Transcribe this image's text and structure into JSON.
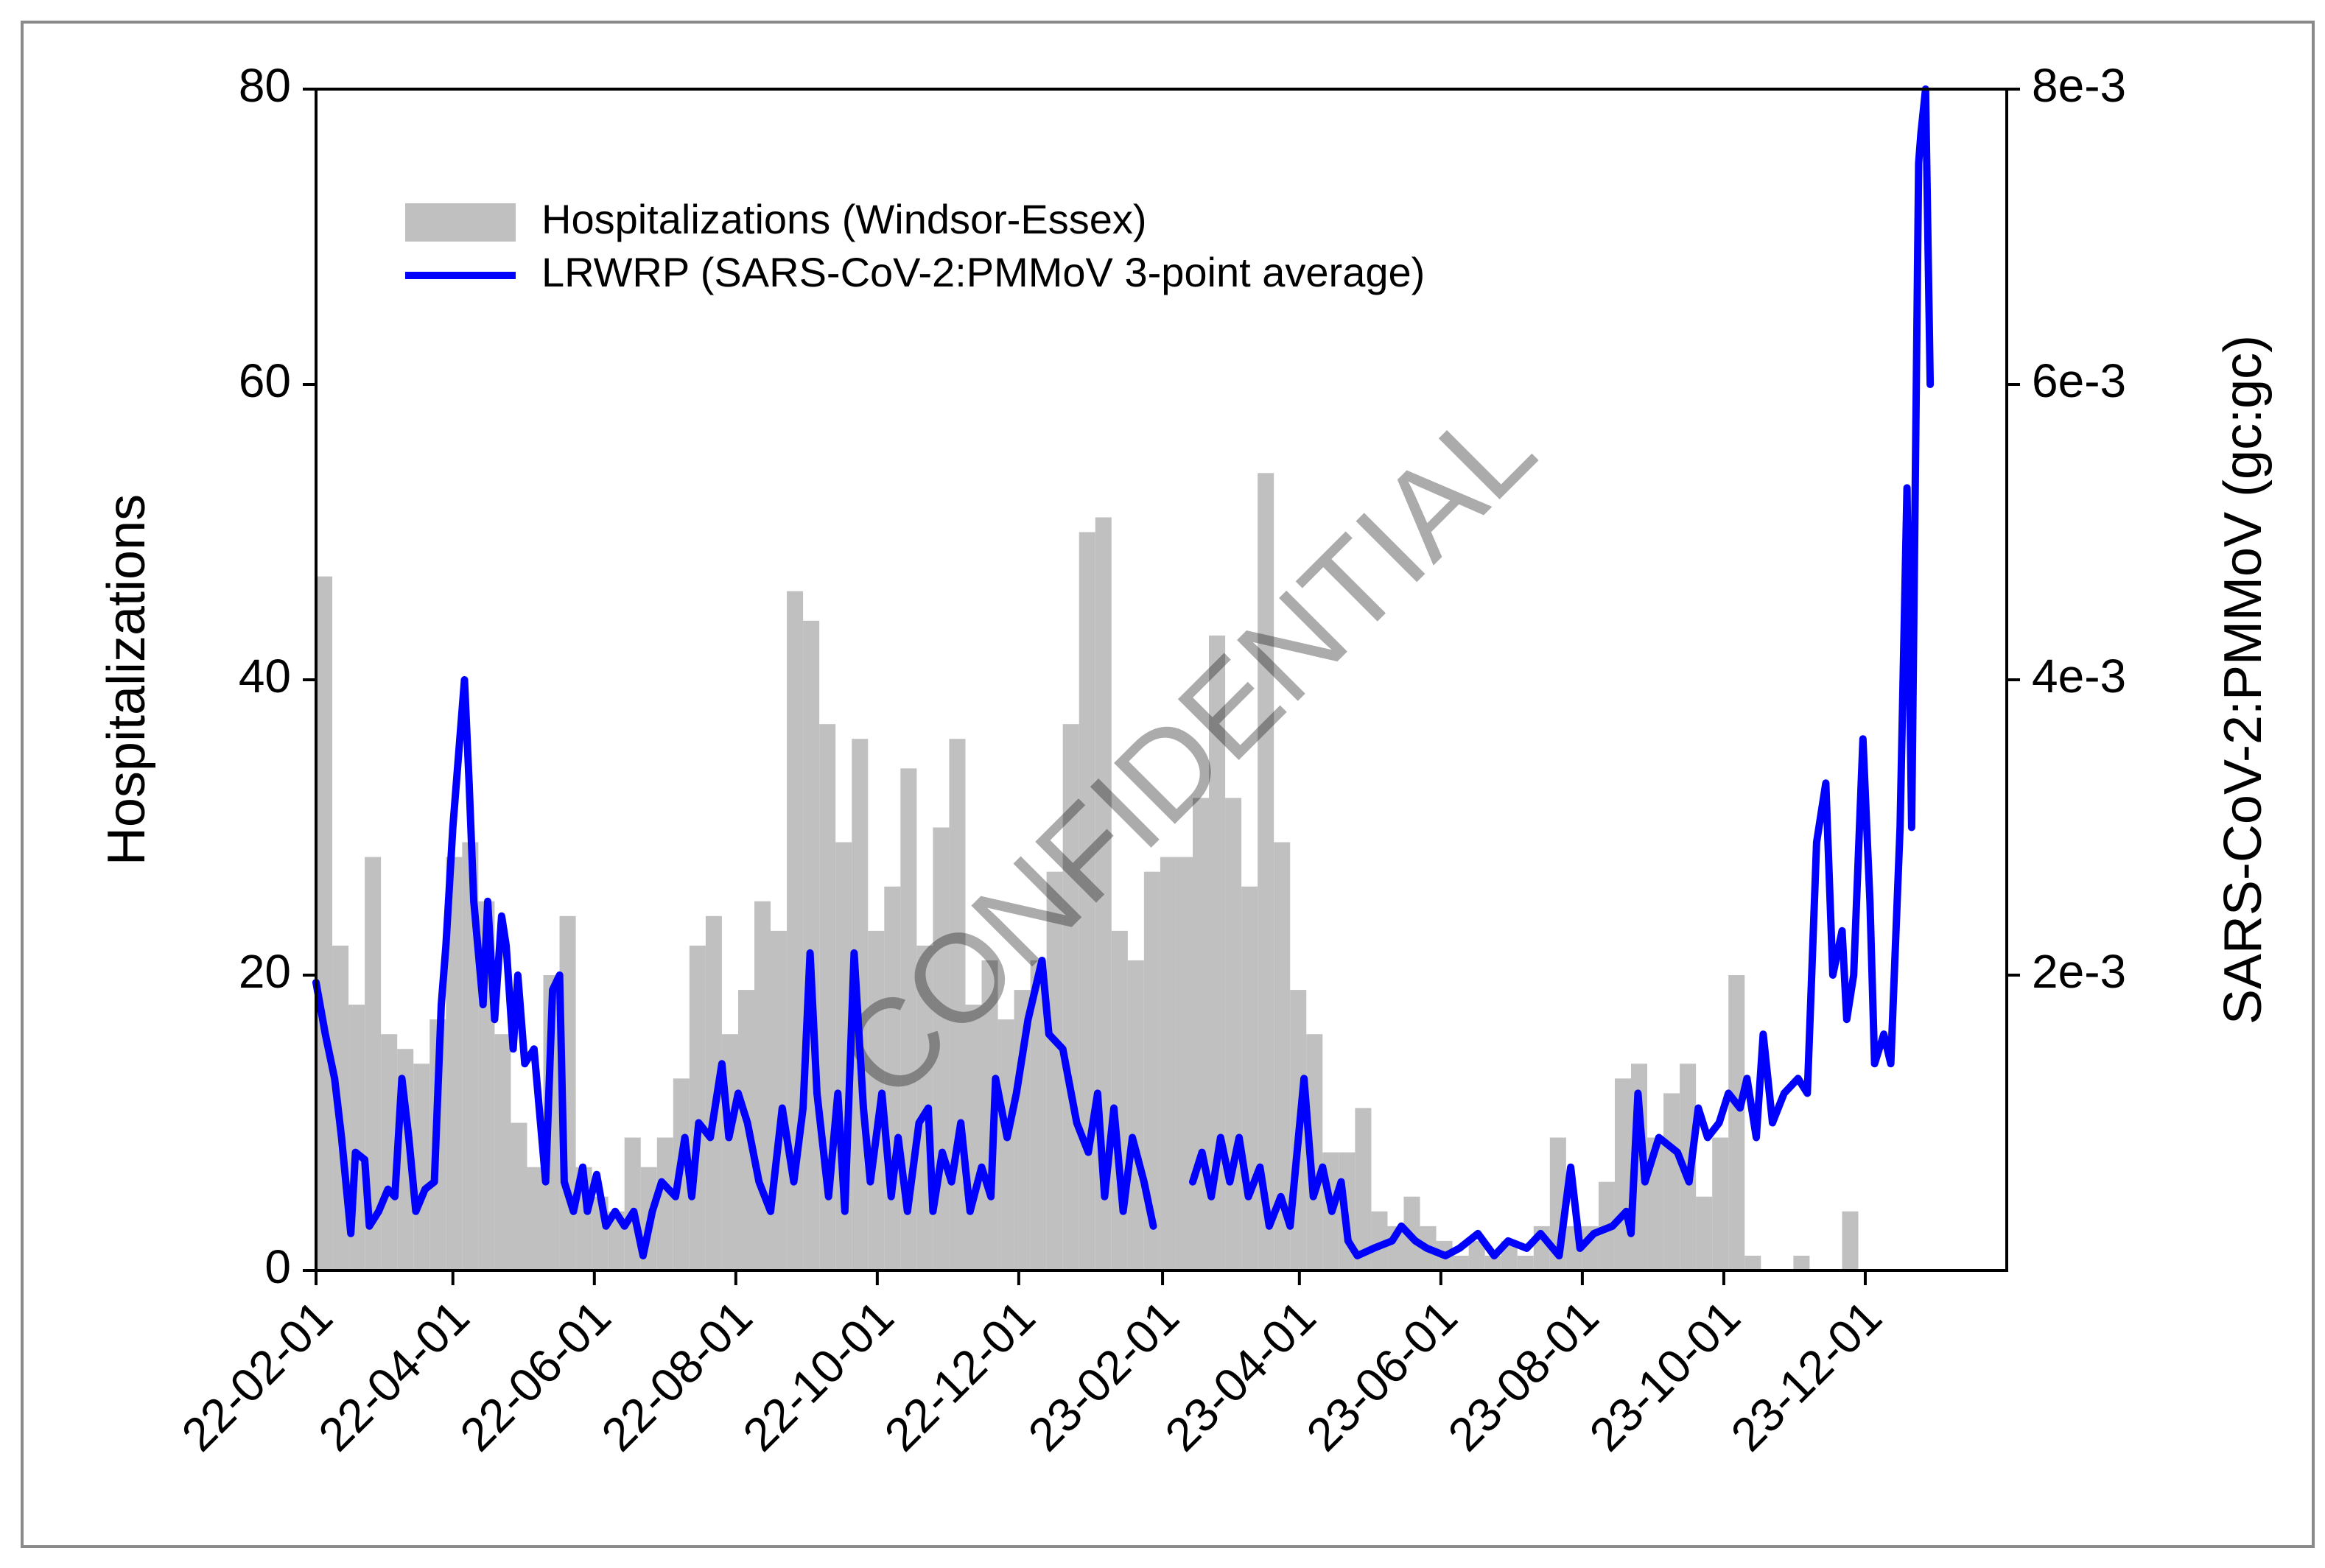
{
  "chart_data": {
    "type": "combo",
    "watermark": "CONFIDENTIAL",
    "ylabel": "Hospitalizations",
    "y2label": "SARS-CoV-2:PMMoV (gc:gc)",
    "legend": "upper left",
    "xlim": [
      "22-02-01",
      "24-01-31"
    ],
    "xticks": [
      "22-02-01",
      "22-04-01",
      "22-06-01",
      "22-08-01",
      "22-10-01",
      "22-12-01",
      "23-02-01",
      "23-04-01",
      "23-06-01",
      "23-08-01",
      "23-10-01",
      "23-12-01"
    ],
    "ylim": [
      0,
      80
    ],
    "yticks": [
      0,
      20,
      40,
      60,
      80
    ],
    "y2lim": [
      0,
      0.008
    ],
    "y2ticks": [
      {
        "value": 0.002,
        "label": "2e-3"
      },
      {
        "value": 0.004,
        "label": "4e-3"
      },
      {
        "value": 0.006,
        "label": "6e-3"
      },
      {
        "value": 0.008,
        "label": "8e-3"
      }
    ],
    "series": [
      {
        "name": "Hospitalizations (Windsor-Essex)",
        "type": "bar",
        "color": "#c0c0c0",
        "x": [
          "22-02-01",
          "22-02-08",
          "22-02-15",
          "22-02-22",
          "22-03-01",
          "22-03-08",
          "22-03-15",
          "22-03-22",
          "22-03-29",
          "22-04-05",
          "22-04-12",
          "22-04-19",
          "22-04-26",
          "22-05-03",
          "22-05-10",
          "22-05-17",
          "22-05-24",
          "22-05-31",
          "22-06-07",
          "22-06-14",
          "22-06-21",
          "22-06-28",
          "22-07-05",
          "22-07-12",
          "22-07-19",
          "22-07-26",
          "22-08-02",
          "22-08-09",
          "22-08-16",
          "22-08-23",
          "22-08-30",
          "22-09-06",
          "22-09-13",
          "22-09-20",
          "22-09-27",
          "22-10-04",
          "22-10-11",
          "22-10-18",
          "22-10-25",
          "22-11-01",
          "22-11-08",
          "22-11-15",
          "22-11-22",
          "22-11-29",
          "22-12-06",
          "22-12-13",
          "22-12-20",
          "22-12-27",
          "23-01-03",
          "23-01-10",
          "23-01-17",
          "23-01-24",
          "23-01-31",
          "23-02-07",
          "23-02-14",
          "23-02-21",
          "23-02-28",
          "23-03-07",
          "23-03-14",
          "23-03-21",
          "23-03-28",
          "23-04-04",
          "23-04-11",
          "23-04-18",
          "23-04-25",
          "23-05-02",
          "23-05-09",
          "23-05-16",
          "23-05-23",
          "23-05-30",
          "23-06-06",
          "23-06-13",
          "23-06-20",
          "23-06-27",
          "23-07-04",
          "23-07-11",
          "23-07-18",
          "23-07-25",
          "23-08-01",
          "23-08-08",
          "23-08-15",
          "23-08-22",
          "23-08-29",
          "23-09-05",
          "23-09-12",
          "23-09-19",
          "23-09-26",
          "23-10-03",
          "23-10-10",
          "23-10-17",
          "23-10-24",
          "23-10-31",
          "23-11-07",
          "23-11-14",
          "23-11-21"
        ],
        "values": [
          47,
          22,
          18,
          28,
          16,
          15,
          14,
          17,
          28,
          29,
          25,
          16,
          10,
          7,
          20,
          24,
          7,
          5,
          4,
          9,
          7,
          9,
          13,
          22,
          24,
          16,
          19,
          25,
          23,
          46,
          44,
          37,
          29,
          36,
          23,
          26,
          34,
          22,
          30,
          36,
          18,
          21,
          17,
          19,
          21,
          27,
          37,
          50,
          51,
          23,
          21,
          27,
          28,
          28,
          32,
          43,
          32,
          26,
          54,
          29,
          19,
          16,
          8,
          8,
          11,
          4,
          3,
          5,
          3,
          2,
          1,
          2,
          1,
          2,
          1,
          3,
          9,
          3,
          3,
          6,
          13,
          14,
          9,
          12,
          14,
          5,
          9,
          20,
          1,
          0,
          0,
          1,
          0,
          0,
          4
        ]
      },
      {
        "name": "LRWRP (SARS-CoV-2:PMMoV 3-point average)",
        "type": "line",
        "axis": "y2",
        "color": "#0000ff",
        "x": [
          "22-02-01",
          "22-02-05",
          "22-02-09",
          "22-02-12",
          "22-02-16",
          "22-02-18",
          "22-02-22",
          "22-02-24",
          "22-02-28",
          "22-03-04",
          "22-03-07",
          "22-03-10",
          "22-03-13",
          "22-03-16",
          "22-03-20",
          "22-03-24",
          "22-03-27",
          "22-03-29",
          "22-04-01",
          "22-04-06",
          "22-04-08",
          "22-04-10",
          "22-04-14",
          "22-04-16",
          "22-04-19",
          "22-04-22",
          "22-04-24",
          "22-04-27",
          "22-04-29",
          "22-05-02",
          "22-05-06",
          "22-05-11",
          "22-05-14",
          "22-05-17",
          "22-05-19",
          "22-05-23",
          "22-05-27",
          "22-05-29",
          "22-06-02",
          "22-06-06",
          "22-06-10",
          "22-06-14",
          "22-06-18",
          "22-06-22",
          "22-06-26",
          "22-06-30",
          "22-07-06",
          "22-07-10",
          "22-07-13",
          "22-07-16",
          "22-07-21",
          "22-07-26",
          "22-07-29",
          "22-08-02",
          "22-08-06",
          "22-08-11",
          "22-08-16",
          "22-08-21",
          "22-08-26",
          "22-08-30",
          "22-09-02",
          "22-09-05",
          "22-09-10",
          "22-09-14",
          "22-09-17",
          "22-09-21",
          "22-09-25",
          "22-09-28",
          "22-10-03",
          "22-10-07",
          "22-10-10",
          "22-10-14",
          "22-10-19",
          "22-10-23",
          "22-10-25",
          "22-10-29",
          "22-11-02",
          "22-11-06",
          "22-11-10",
          "22-11-15",
          "22-11-19",
          "22-11-21",
          "22-11-26",
          "22-11-30",
          "22-12-05",
          "22-12-11",
          "22-12-14",
          "22-12-20",
          "22-12-26",
          "22-12-31",
          "23-01-04",
          "23-01-07",
          "23-01-11",
          "23-01-15",
          "23-01-19",
          "23-01-24",
          "23-01-28",
          "23-02-05",
          "23-02-14",
          "23-02-18",
          "23-02-22",
          "23-02-26",
          "23-03-02",
          "23-03-06",
          "23-03-10",
          "23-03-15",
          "23-03-19",
          "23-03-24",
          "23-03-28",
          "23-04-03",
          "23-04-07",
          "23-04-11",
          "23-04-15",
          "23-04-19",
          "23-04-22",
          "23-04-26",
          "23-05-03",
          "23-05-11",
          "23-05-15",
          "23-05-21",
          "23-05-26",
          "23-06-03",
          "23-06-09",
          "23-06-17",
          "23-06-24",
          "23-06-30",
          "23-07-08",
          "23-07-14",
          "23-07-22",
          "23-07-27",
          "23-07-31",
          "23-08-06",
          "23-08-14",
          "23-08-20",
          "23-08-22",
          "23-08-25",
          "23-08-28",
          "23-09-03",
          "23-09-11",
          "23-09-16",
          "23-09-20",
          "23-09-24",
          "23-09-29",
          "23-10-03",
          "23-10-08",
          "23-10-11",
          "23-10-15",
          "23-10-18",
          "23-10-22",
          "23-10-27",
          "23-11-02",
          "23-11-06",
          "23-11-10",
          "23-11-14",
          "23-11-17",
          "23-11-21",
          "23-11-23",
          "23-11-26",
          "23-11-30",
          "23-12-03",
          "23-12-05",
          "23-12-09",
          "23-12-12",
          "23-12-16",
          "23-12-19",
          "23-12-21",
          "23-12-24",
          "23-12-25",
          "23-12-27",
          "23-12-29"
        ],
        "values": [
          0.00195,
          0.0016,
          0.0013,
          0.0009,
          0.00025,
          0.0008,
          0.00075,
          0.0003,
          0.0004,
          0.00055,
          0.0005,
          0.0013,
          0.0009,
          0.0004,
          0.00055,
          0.0006,
          0.0018,
          0.0022,
          0.003,
          0.004,
          0.0033,
          0.0025,
          0.0018,
          0.0025,
          0.0017,
          0.0024,
          0.0022,
          0.0015,
          0.002,
          0.0014,
          0.0015,
          0.0006,
          0.0019,
          0.002,
          0.0006,
          0.0004,
          0.0007,
          0.0004,
          0.00065,
          0.0003,
          0.0004,
          0.0003,
          0.0004,
          0.0001,
          0.0004,
          0.0006,
          0.0005,
          0.0009,
          0.0005,
          0.001,
          0.0009,
          0.0014,
          0.0009,
          0.0012,
          0.001,
          0.0006,
          0.0004,
          0.0011,
          0.0006,
          0.0011,
          0.00215,
          0.0012,
          0.0005,
          0.0012,
          0.0004,
          0.00215,
          0.0011,
          0.0006,
          0.0012,
          0.0005,
          0.0009,
          0.0004,
          0.001,
          0.0011,
          0.0004,
          0.0008,
          0.0006,
          0.001,
          0.0004,
          0.0007,
          0.0005,
          0.0013,
          0.0009,
          0.0012,
          0.0017,
          0.0021,
          0.0016,
          0.0015,
          0.001,
          0.0008,
          0.0012,
          0.0005,
          0.0011,
          0.0004,
          0.0009,
          0.0006,
          0.0003,
          null,
          0.0006,
          0.0008,
          0.0005,
          0.0009,
          0.0006,
          0.0009,
          0.0005,
          0.0007,
          0.0003,
          0.0005,
          0.0003,
          0.0013,
          0.0005,
          0.0007,
          0.0004,
          0.0006,
          0.0002,
          0.0001,
          0.00015,
          0.0002,
          0.0003,
          0.0002,
          0.00015,
          0.0001,
          0.00015,
          0.00025,
          0.0001,
          0.0002,
          0.00015,
          0.00025,
          0.0001,
          0.0007,
          0.00015,
          0.00025,
          0.0003,
          0.0004,
          0.00025,
          0.0012,
          0.0006,
          0.0009,
          0.0008,
          0.0006,
          0.0011,
          0.0009,
          0.001,
          0.0012,
          0.0011,
          0.0013,
          0.0009,
          0.0016,
          0.001,
          0.0012,
          0.0013,
          0.0012,
          0.0029,
          0.0033,
          0.002,
          0.0023,
          0.0017,
          0.002,
          0.0036,
          0.0025,
          0.0014,
          0.0016,
          0.0014,
          0.003,
          0.0053,
          0.003,
          0.0075,
          0.0077,
          0.008,
          0.006
        ]
      }
    ]
  }
}
